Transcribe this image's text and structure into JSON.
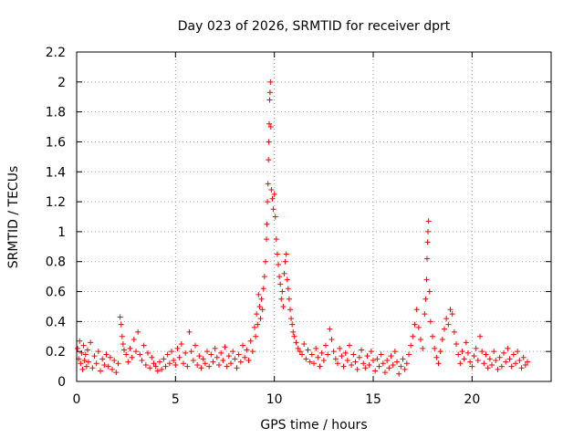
{
  "chart_data": {
    "type": "scatter",
    "title": "Day 023 of 2026, SRMTID for receiver dprt",
    "xlabel": "GPS time / hours",
    "ylabel": "SRMTID / TECUs",
    "xlim": [
      0,
      24
    ],
    "ylim": [
      0,
      2.2
    ],
    "xticks": [
      0,
      5,
      10,
      15,
      20
    ],
    "yticks": [
      0,
      0.2,
      0.4,
      0.6,
      0.8,
      1,
      1.2,
      1.4,
      1.6,
      1.8,
      2,
      2.2
    ],
    "ytick_labels": [
      "0",
      "0.2",
      "0.4",
      "0.6",
      "0.8",
      "1",
      "1.2",
      "1.4",
      "1.6",
      "1.8",
      "2",
      "2.2"
    ],
    "grid": true,
    "marker": "+",
    "marker_color": "#ff0000",
    "series": [
      {
        "name": "SRMTID",
        "points": [
          [
            0.05,
            0.22
          ],
          [
            0.1,
            0.15
          ],
          [
            0.15,
            0.27
          ],
          [
            0.2,
            0.12
          ],
          [
            0.25,
            0.19
          ],
          [
            0.3,
            0.08
          ],
          [
            0.35,
            0.24
          ],
          [
            0.4,
            0.14
          ],
          [
            0.45,
            0.18
          ],
          [
            0.5,
            0.1
          ],
          [
            0.55,
            0.21
          ],
          [
            0.6,
            0.13
          ],
          [
            0.7,
            0.26
          ],
          [
            0.8,
            0.09
          ],
          [
            0.9,
            0.17
          ],
          [
            1.0,
            0.12
          ],
          [
            1.1,
            0.2
          ],
          [
            1.2,
            0.07
          ],
          [
            1.3,
            0.15
          ],
          [
            1.4,
            0.11
          ],
          [
            1.5,
            0.18
          ],
          [
            1.6,
            0.1
          ],
          [
            1.7,
            0.16
          ],
          [
            1.8,
            0.08
          ],
          [
            1.9,
            0.14
          ],
          [
            2.0,
            0.06
          ],
          [
            2.1,
            0.12
          ],
          [
            2.2,
            0.43
          ],
          [
            2.25,
            0.38
          ],
          [
            2.3,
            0.3
          ],
          [
            2.35,
            0.25
          ],
          [
            2.4,
            0.21
          ],
          [
            2.5,
            0.18
          ],
          [
            2.6,
            0.13
          ],
          [
            2.7,
            0.22
          ],
          [
            2.8,
            0.16
          ],
          [
            2.9,
            0.28
          ],
          [
            3.0,
            0.2
          ],
          [
            3.1,
            0.33
          ],
          [
            3.2,
            0.18
          ],
          [
            3.3,
            0.14
          ],
          [
            3.4,
            0.24
          ],
          [
            3.5,
            0.11
          ],
          [
            3.6,
            0.19
          ],
          [
            3.7,
            0.09
          ],
          [
            3.8,
            0.16
          ],
          [
            3.9,
            0.12
          ],
          [
            4.0,
            0.1
          ],
          [
            4.1,
            0.07
          ],
          [
            4.2,
            0.13
          ],
          [
            4.3,
            0.08
          ],
          [
            4.4,
            0.15
          ],
          [
            4.5,
            0.1
          ],
          [
            4.6,
            0.18
          ],
          [
            4.7,
            0.12
          ],
          [
            4.8,
            0.2
          ],
          [
            4.9,
            0.14
          ],
          [
            5.0,
            0.11
          ],
          [
            5.1,
            0.22
          ],
          [
            5.2,
            0.16
          ],
          [
            5.3,
            0.25
          ],
          [
            5.4,
            0.12
          ],
          [
            5.5,
            0.19
          ],
          [
            5.6,
            0.1
          ],
          [
            5.7,
            0.33
          ],
          [
            5.8,
            0.2
          ],
          [
            5.9,
            0.14
          ],
          [
            6.0,
            0.24
          ],
          [
            6.1,
            0.11
          ],
          [
            6.2,
            0.17
          ],
          [
            6.3,
            0.09
          ],
          [
            6.4,
            0.15
          ],
          [
            6.5,
            0.12
          ],
          [
            6.6,
            0.2
          ],
          [
            6.7,
            0.1
          ],
          [
            6.8,
            0.18
          ],
          [
            6.9,
            0.13
          ],
          [
            7.0,
            0.22
          ],
          [
            7.1,
            0.16
          ],
          [
            7.2,
            0.11
          ],
          [
            7.3,
            0.19
          ],
          [
            7.4,
            0.14
          ],
          [
            7.5,
            0.23
          ],
          [
            7.6,
            0.1
          ],
          [
            7.7,
            0.17
          ],
          [
            7.8,
            0.12
          ],
          [
            7.9,
            0.2
          ],
          [
            8.0,
            0.15
          ],
          [
            8.1,
            0.09
          ],
          [
            8.2,
            0.18
          ],
          [
            8.3,
            0.13
          ],
          [
            8.4,
            0.24
          ],
          [
            8.5,
            0.16
          ],
          [
            8.6,
            0.21
          ],
          [
            8.7,
            0.14
          ],
          [
            8.8,
            0.27
          ],
          [
            8.9,
            0.2
          ],
          [
            9.0,
            0.36
          ],
          [
            9.05,
            0.3
          ],
          [
            9.1,
            0.45
          ],
          [
            9.15,
            0.38
          ],
          [
            9.2,
            0.58
          ],
          [
            9.25,
            0.5
          ],
          [
            9.3,
            0.42
          ],
          [
            9.35,
            0.55
          ],
          [
            9.4,
            0.48
          ],
          [
            9.45,
            0.62
          ],
          [
            9.5,
            0.7
          ],
          [
            9.55,
            0.8
          ],
          [
            9.6,
            0.95
          ],
          [
            9.62,
            1.05
          ],
          [
            9.65,
            1.2
          ],
          [
            9.68,
            1.32
          ],
          [
            9.7,
            1.48
          ],
          [
            9.72,
            1.6
          ],
          [
            9.74,
            1.72
          ],
          [
            9.76,
            1.88
          ],
          [
            9.78,
            1.93
          ],
          [
            9.8,
            2.0
          ],
          [
            9.82,
            1.7
          ],
          [
            9.85,
            1.28
          ],
          [
            9.9,
            1.22
          ],
          [
            9.95,
            1.15
          ],
          [
            10.0,
            1.25
          ],
          [
            10.05,
            1.1
          ],
          [
            10.1,
            0.95
          ],
          [
            10.15,
            0.85
          ],
          [
            10.2,
            0.78
          ],
          [
            10.25,
            0.7
          ],
          [
            10.3,
            0.65
          ],
          [
            10.35,
            0.55
          ],
          [
            10.4,
            0.6
          ],
          [
            10.45,
            0.5
          ],
          [
            10.5,
            0.72
          ],
          [
            10.55,
            0.8
          ],
          [
            10.6,
            0.85
          ],
          [
            10.65,
            0.68
          ],
          [
            10.7,
            0.62
          ],
          [
            10.75,
            0.55
          ],
          [
            10.8,
            0.48
          ],
          [
            10.85,
            0.42
          ],
          [
            10.9,
            0.38
          ],
          [
            10.95,
            0.33
          ],
          [
            11.0,
            0.3
          ],
          [
            11.1,
            0.26
          ],
          [
            11.2,
            0.22
          ],
          [
            11.3,
            0.2
          ],
          [
            11.4,
            0.18
          ],
          [
            11.5,
            0.25
          ],
          [
            11.6,
            0.15
          ],
          [
            11.7,
            0.21
          ],
          [
            11.8,
            0.13
          ],
          [
            11.9,
            0.18
          ],
          [
            12.0,
            0.12
          ],
          [
            12.1,
            0.22
          ],
          [
            12.2,
            0.16
          ],
          [
            12.3,
            0.1
          ],
          [
            12.4,
            0.19
          ],
          [
            12.5,
            0.14
          ],
          [
            12.6,
            0.24
          ],
          [
            12.7,
            0.18
          ],
          [
            12.8,
            0.35
          ],
          [
            12.9,
            0.28
          ],
          [
            13.0,
            0.2
          ],
          [
            13.1,
            0.15
          ],
          [
            13.2,
            0.12
          ],
          [
            13.3,
            0.22
          ],
          [
            13.4,
            0.17
          ],
          [
            13.5,
            0.1
          ],
          [
            13.6,
            0.19
          ],
          [
            13.7,
            0.14
          ],
          [
            13.8,
            0.24
          ],
          [
            13.9,
            0.11
          ],
          [
            14.0,
            0.18
          ],
          [
            14.1,
            0.13
          ],
          [
            14.2,
            0.08
          ],
          [
            14.3,
            0.16
          ],
          [
            14.4,
            0.21
          ],
          [
            14.5,
            0.12
          ],
          [
            14.6,
            0.09
          ],
          [
            14.7,
            0.17
          ],
          [
            14.8,
            0.11
          ],
          [
            14.9,
            0.2
          ],
          [
            15.0,
            0.14
          ],
          [
            15.1,
            0.07
          ],
          [
            15.2,
            0.15
          ],
          [
            15.3,
            0.1
          ],
          [
            15.4,
            0.18
          ],
          [
            15.5,
            0.12
          ],
          [
            15.6,
            0.06
          ],
          [
            15.7,
            0.14
          ],
          [
            15.8,
            0.09
          ],
          [
            15.9,
            0.17
          ],
          [
            16.0,
            0.11
          ],
          [
            16.1,
            0.2
          ],
          [
            16.2,
            0.13
          ],
          [
            16.3,
            0.05
          ],
          [
            16.4,
            0.1
          ],
          [
            16.5,
            0.15
          ],
          [
            16.6,
            0.08
          ],
          [
            16.7,
            0.12
          ],
          [
            16.8,
            0.18
          ],
          [
            16.9,
            0.24
          ],
          [
            17.0,
            0.3
          ],
          [
            17.1,
            0.38
          ],
          [
            17.2,
            0.48
          ],
          [
            17.3,
            0.36
          ],
          [
            17.4,
            0.28
          ],
          [
            17.5,
            0.22
          ],
          [
            17.6,
            0.45
          ],
          [
            17.65,
            0.55
          ],
          [
            17.7,
            0.68
          ],
          [
            17.72,
            0.82
          ],
          [
            17.75,
            0.93
          ],
          [
            17.77,
            1.0
          ],
          [
            17.8,
            1.07
          ],
          [
            17.85,
            0.6
          ],
          [
            17.9,
            0.4
          ],
          [
            18.0,
            0.3
          ],
          [
            18.1,
            0.22
          ],
          [
            18.2,
            0.16
          ],
          [
            18.3,
            0.12
          ],
          [
            18.4,
            0.2
          ],
          [
            18.5,
            0.28
          ],
          [
            18.6,
            0.35
          ],
          [
            18.7,
            0.42
          ],
          [
            18.8,
            0.38
          ],
          [
            18.9,
            0.48
          ],
          [
            19.0,
            0.45
          ],
          [
            19.1,
            0.33
          ],
          [
            19.2,
            0.25
          ],
          [
            19.3,
            0.18
          ],
          [
            19.4,
            0.12
          ],
          [
            19.5,
            0.2
          ],
          [
            19.6,
            0.15
          ],
          [
            19.7,
            0.26
          ],
          [
            19.8,
            0.19
          ],
          [
            19.9,
            0.13
          ],
          [
            20.0,
            0.1
          ],
          [
            20.1,
            0.17
          ],
          [
            20.2,
            0.22
          ],
          [
            20.3,
            0.14
          ],
          [
            20.4,
            0.3
          ],
          [
            20.5,
            0.2
          ],
          [
            20.6,
            0.12
          ],
          [
            20.7,
            0.18
          ],
          [
            20.8,
            0.09
          ],
          [
            20.9,
            0.15
          ],
          [
            21.0,
            0.11
          ],
          [
            21.1,
            0.2
          ],
          [
            21.2,
            0.14
          ],
          [
            21.3,
            0.08
          ],
          [
            21.4,
            0.16
          ],
          [
            21.5,
            0.1
          ],
          [
            21.6,
            0.19
          ],
          [
            21.7,
            0.13
          ],
          [
            21.8,
            0.22
          ],
          [
            21.9,
            0.15
          ],
          [
            22.0,
            0.1
          ],
          [
            22.1,
            0.18
          ],
          [
            22.2,
            0.12
          ],
          [
            22.3,
            0.2
          ],
          [
            22.4,
            0.14
          ],
          [
            22.5,
            0.09
          ],
          [
            22.6,
            0.16
          ],
          [
            22.7,
            0.11
          ],
          [
            22.8,
            0.13
          ]
        ]
      }
    ]
  }
}
